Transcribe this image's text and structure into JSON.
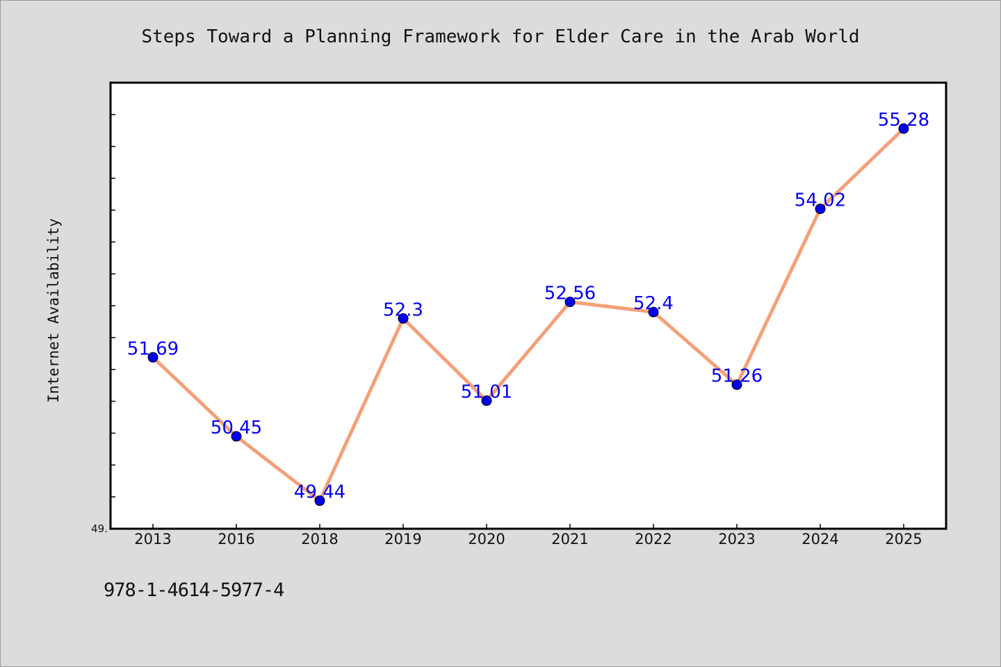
{
  "chart_data": {
    "type": "line",
    "title": "Steps Toward a Planning Framework for Elder Care in the Arab World",
    "xlabel": "",
    "ylabel": "Internet Availability",
    "categories": [
      "2013",
      "2016",
      "2018",
      "2019",
      "2020",
      "2021",
      "2022",
      "2023",
      "2024",
      "2025"
    ],
    "values": [
      51.69,
      50.45,
      49.44,
      52.3,
      51.01,
      52.56,
      52.4,
      51.26,
      54.02,
      55.28
    ],
    "data_labels": [
      "51.69",
      "50.45",
      "49.44",
      "52.3",
      "51.01",
      "52.56",
      "52.4",
      "51.26",
      "54.02",
      "55.28"
    ],
    "ylim": [
      49,
      56
    ],
    "y_tick_label_visible": "49.",
    "grid": false,
    "legend": "none",
    "colors": {
      "line": "#f4a07a",
      "marker": "#0000ee",
      "data_label": "#0000ee",
      "plot_background": "#ffffff",
      "figure_background": "#dcdcdc"
    }
  },
  "footer": {
    "isbn": "978-1-4614-5977-4"
  }
}
